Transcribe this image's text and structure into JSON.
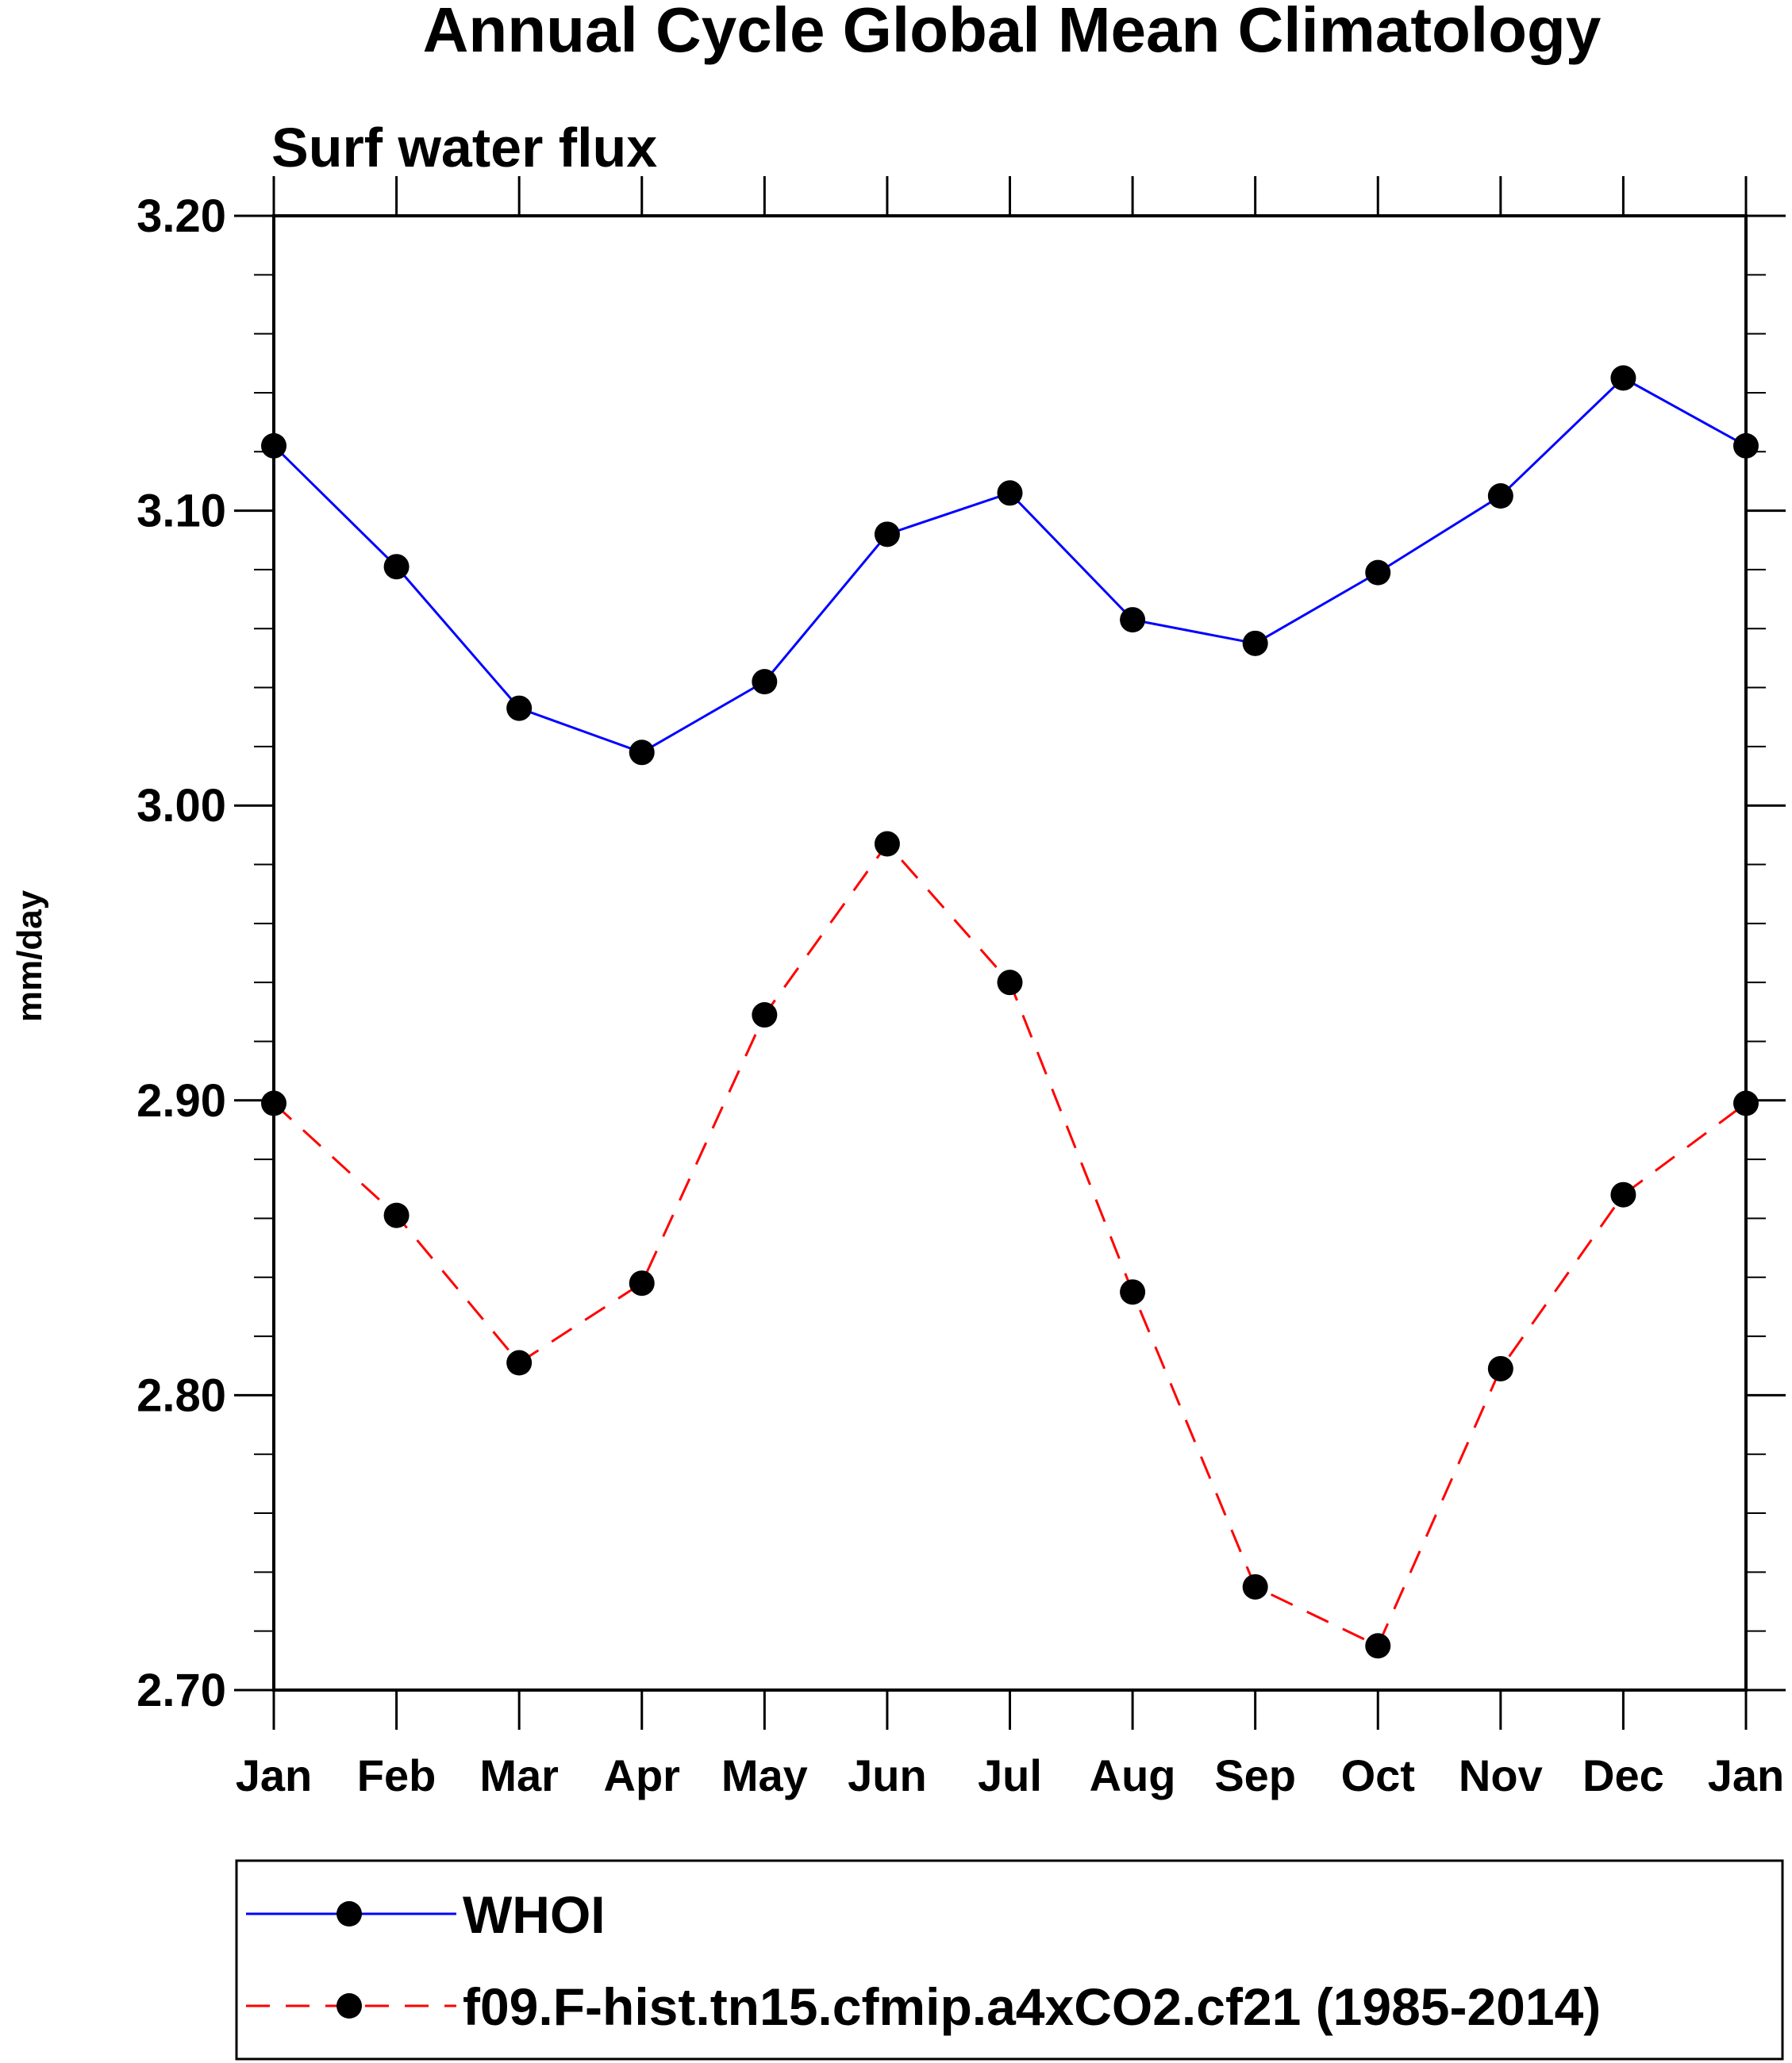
{
  "chart_data": {
    "type": "line",
    "title": "Annual Cycle Global Mean Climatology",
    "subtitle": "Surf water flux",
    "ylabel": "mm/day",
    "xlabel": "",
    "categories": [
      "Jan",
      "Feb",
      "Mar",
      "Apr",
      "May",
      "Jun",
      "Jul",
      "Aug",
      "Sep",
      "Oct",
      "Nov",
      "Dec",
      "Jan"
    ],
    "ylim": [
      2.7,
      3.2
    ],
    "yticks": [
      "2.70",
      "2.80",
      "2.90",
      "3.00",
      "3.10",
      "3.20"
    ],
    "y_minor_step": 0.02,
    "grid": false,
    "legend_position": "bottom",
    "series": [
      {
        "name": "WHOI",
        "color": "#0000ff",
        "dash": "solid",
        "marker": "filled-circle",
        "values": [
          3.122,
          3.081,
          3.033,
          3.018,
          3.042,
          3.092,
          3.106,
          3.063,
          3.055,
          3.079,
          3.105,
          3.145,
          3.122
        ]
      },
      {
        "name": "f09.F-hist.tn15.cfmip.a4xCO2.cf21 (1985-2014)",
        "color": "#ff0000",
        "dash": "dashed",
        "marker": "filled-circle",
        "values": [
          2.899,
          2.861,
          2.811,
          2.838,
          2.929,
          2.987,
          2.94,
          2.835,
          2.735,
          2.715,
          2.809,
          2.868,
          2.899
        ]
      }
    ]
  }
}
